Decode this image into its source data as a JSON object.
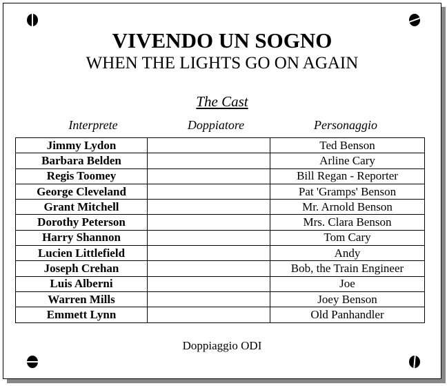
{
  "title": "VIVENDO UN SOGNO",
  "subtitle": "WHEN THE LIGHTS GO ON AGAIN",
  "section": "The Cast",
  "columns": [
    "Interprete",
    "Doppiatore",
    "Personaggio"
  ],
  "rows": [
    {
      "actor": "Jimmy Lydon",
      "dubber": "",
      "character": "Ted Benson"
    },
    {
      "actor": "Barbara Belden",
      "dubber": "",
      "character": "Arline Cary"
    },
    {
      "actor": "Regis Toomey",
      "dubber": "",
      "character": "Bill Regan - Reporter"
    },
    {
      "actor": "George Cleveland",
      "dubber": "",
      "character": "Pat 'Gramps' Benson"
    },
    {
      "actor": "Grant Mitchell",
      "dubber": "",
      "character": "Mr. Arnold Benson"
    },
    {
      "actor": "Dorothy Peterson",
      "dubber": "",
      "character": "Mrs. Clara Benson"
    },
    {
      "actor": "Harry Shannon",
      "dubber": "",
      "character": "Tom Cary"
    },
    {
      "actor": "Lucien  Littlefield",
      "dubber": "",
      "character": "Andy"
    },
    {
      "actor": "Joseph Crehan",
      "dubber": "",
      "character": "Bob, the Train Engineer"
    },
    {
      "actor": "Luis Alberni",
      "dubber": "",
      "character": "Joe"
    },
    {
      "actor": "Warren Mills",
      "dubber": "",
      "character": "Joey Benson"
    },
    {
      "actor": "Emmett Lynn",
      "dubber": "",
      "character": "Old Panhandler"
    }
  ],
  "footer": "Doppiaggio ODI"
}
